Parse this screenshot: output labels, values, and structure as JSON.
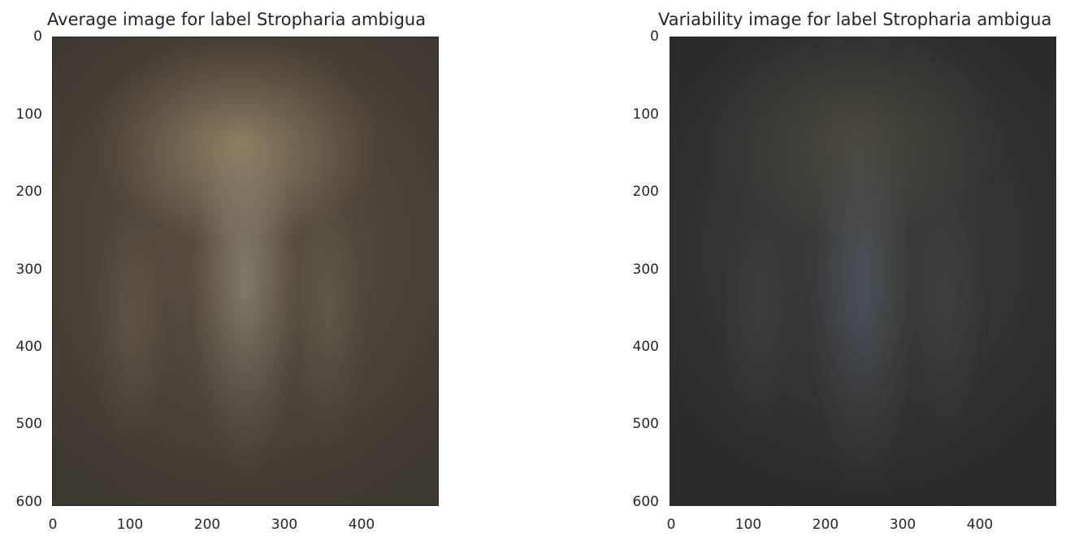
{
  "panels": [
    {
      "title": "Average image for label Stropharia ambigua",
      "y_ticks": [
        "0",
        "100",
        "200",
        "300",
        "400",
        "500",
        "600"
      ],
      "x_ticks": [
        "0",
        "100",
        "200",
        "300",
        "400"
      ],
      "image_extent": {
        "width": 500,
        "height": 600
      },
      "base_color": "#5a5244"
    },
    {
      "title": "Variability image for label Stropharia ambigua",
      "y_ticks": [
        "0",
        "100",
        "200",
        "300",
        "400",
        "500",
        "600"
      ],
      "x_ticks": [
        "0",
        "100",
        "200",
        "300",
        "400"
      ],
      "image_extent": {
        "width": 500,
        "height": 600
      },
      "base_color": "#3c3d3a"
    }
  ]
}
